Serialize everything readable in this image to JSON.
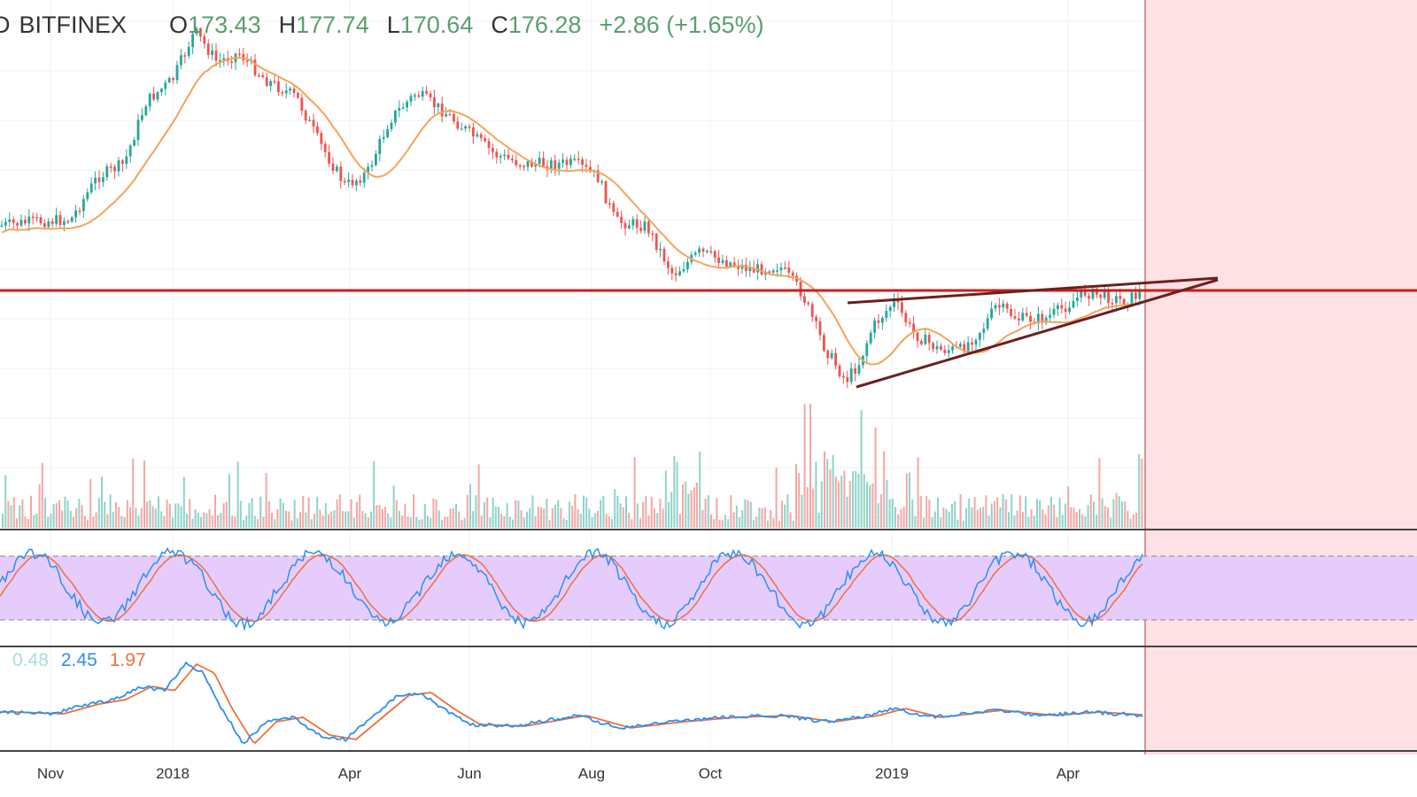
{
  "header": {
    "symbol_fragment": "D",
    "exchange": "BITFINEX",
    "open_label": "O",
    "open": "173.43",
    "high_label": "H",
    "high": "177.74",
    "low_label": "L",
    "low": "170.64",
    "close_label": "C",
    "close": "176.28",
    "change": "+2.86 (+1.65%)"
  },
  "oscillator_legend": {
    "hist": "0.48",
    "macd": "2.45",
    "signal": "1.97"
  },
  "colors": {
    "up": "#26a69a",
    "down": "#ef5350",
    "ma": "#f5a35a",
    "resistance": "#d01c1c",
    "wedge": "#6b2020",
    "shade": "#fde1e4",
    "stoch_band": "#e6ccfc",
    "stoch_k": "#2e8ff0",
    "stoch_d": "#ef6f3c",
    "macd": "#2e8ff0",
    "signal": "#ef6f3c",
    "hist_text": "#a8dede"
  },
  "chart_data": {
    "type": "line",
    "x_tick_labels": [
      "Nov",
      "2018",
      "Apr",
      "Jun",
      "Aug",
      "Oct",
      "2019",
      "Apr"
    ],
    "price_series": {
      "name": "close",
      "dates": [
        "2017-10",
        "2017-11",
        "2017-12",
        "2018-01",
        "2018-02",
        "2018-03",
        "2018-04",
        "2018-05",
        "2018-06",
        "2018-07",
        "2018-08",
        "2018-09",
        "2018-10",
        "2018-11",
        "2018-12",
        "2019-01",
        "2019-02",
        "2019-03",
        "2019-04",
        "2019-05"
      ],
      "values": [
        92,
        90,
        135,
        205,
        185,
        160,
        115,
        165,
        140,
        130,
        120,
        85,
        82,
        80,
        28,
        65,
        50,
        62,
        70,
        74
      ]
    },
    "resistance_level": 72,
    "wedge_apex_date": "2019-07",
    "projection_from": "2019-05",
    "stochastic_band": [
      20,
      80
    ],
    "volume_spikes_at": [
      "2018-11",
      "2018-12"
    ]
  }
}
